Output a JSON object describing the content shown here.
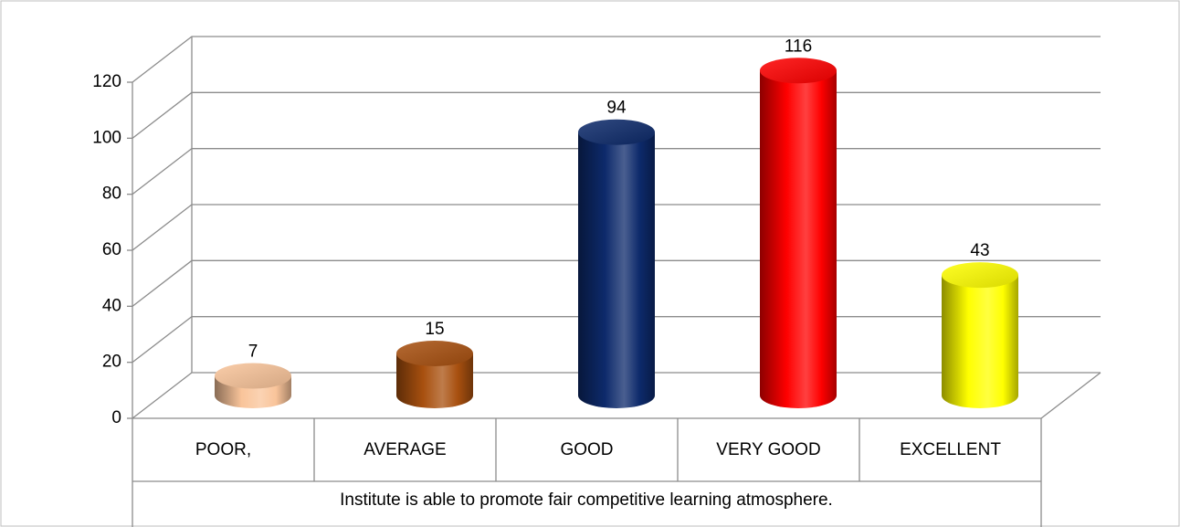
{
  "chart_data": {
    "type": "bar",
    "categories": [
      "POOR,",
      "AVERAGE",
      "GOOD",
      "VERY GOOD",
      "EXCELLENT"
    ],
    "values": [
      7,
      15,
      94,
      116,
      43
    ],
    "colors": [
      "#f9c49a",
      "#a8500f",
      "#0d2a6b",
      "#ff0000",
      "#ffff00"
    ],
    "xlabel": "Institute is able to promote fair competitive learning atmosphere.",
    "ylim": [
      0,
      120
    ],
    "yticks": [
      0,
      20,
      40,
      60,
      80,
      100,
      120
    ],
    "grid": true
  }
}
